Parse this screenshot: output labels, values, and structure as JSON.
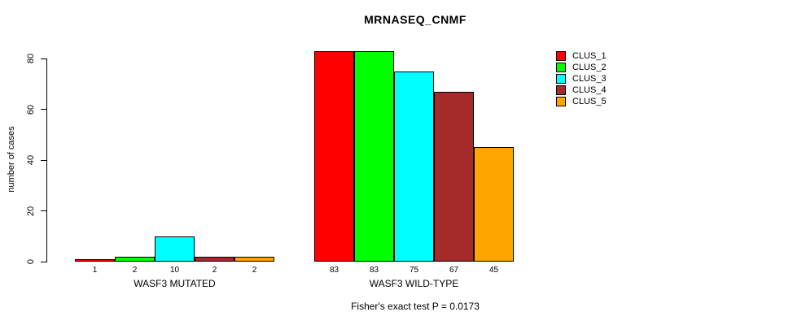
{
  "title": "MRNASEQ_CNMF",
  "footer": "Fisher's exact test P = 0.0173",
  "chart_data": {
    "type": "bar",
    "title": "MRNASEQ_CNMF",
    "ylabel": "number of cases",
    "xlabel": "",
    "ylim": [
      0,
      80
    ],
    "yticks": [
      0,
      20,
      40,
      60,
      80
    ],
    "grid": false,
    "legend_position": "right",
    "series": [
      "CLUS_1",
      "CLUS_2",
      "CLUS_3",
      "CLUS_4",
      "CLUS_5"
    ],
    "colors": [
      "#FF0000",
      "#00FF00",
      "#00FFFF",
      "#A52A2A",
      "#FFA500"
    ],
    "groups": [
      {
        "label": "WASF3 MUTATED",
        "values": [
          1,
          2,
          10,
          2,
          2
        ]
      },
      {
        "label": "WASF3 WILD-TYPE",
        "values": [
          83,
          83,
          75,
          67,
          45
        ]
      }
    ],
    "annotation": "Fisher's exact test P = 0.0173"
  }
}
